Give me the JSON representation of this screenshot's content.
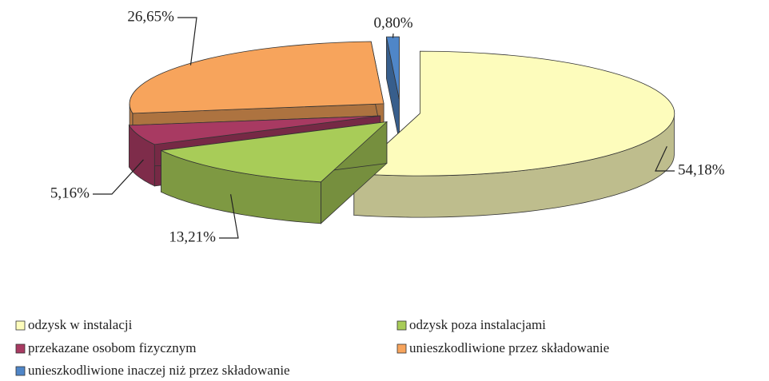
{
  "chart_data": {
    "type": "pie",
    "categories": [
      "odzysk w instalacji",
      "odzysk poza instalacjami",
      "przekazane osobom fizycznym",
      "unieszkodliwione przez składowanie",
      "unieszkodliwione inaczej niż przez składowanie"
    ],
    "values": [
      54.18,
      13.21,
      5.16,
      26.65,
      0.8
    ],
    "value_labels": [
      "54,18%",
      "13,21%",
      "5,16%",
      "26,65%",
      "0,80%"
    ],
    "colors": [
      "#fdfcbc",
      "#a8cc58",
      "#a83a62",
      "#f7a45c",
      "#4f86c8"
    ],
    "legend": "bottom"
  }
}
